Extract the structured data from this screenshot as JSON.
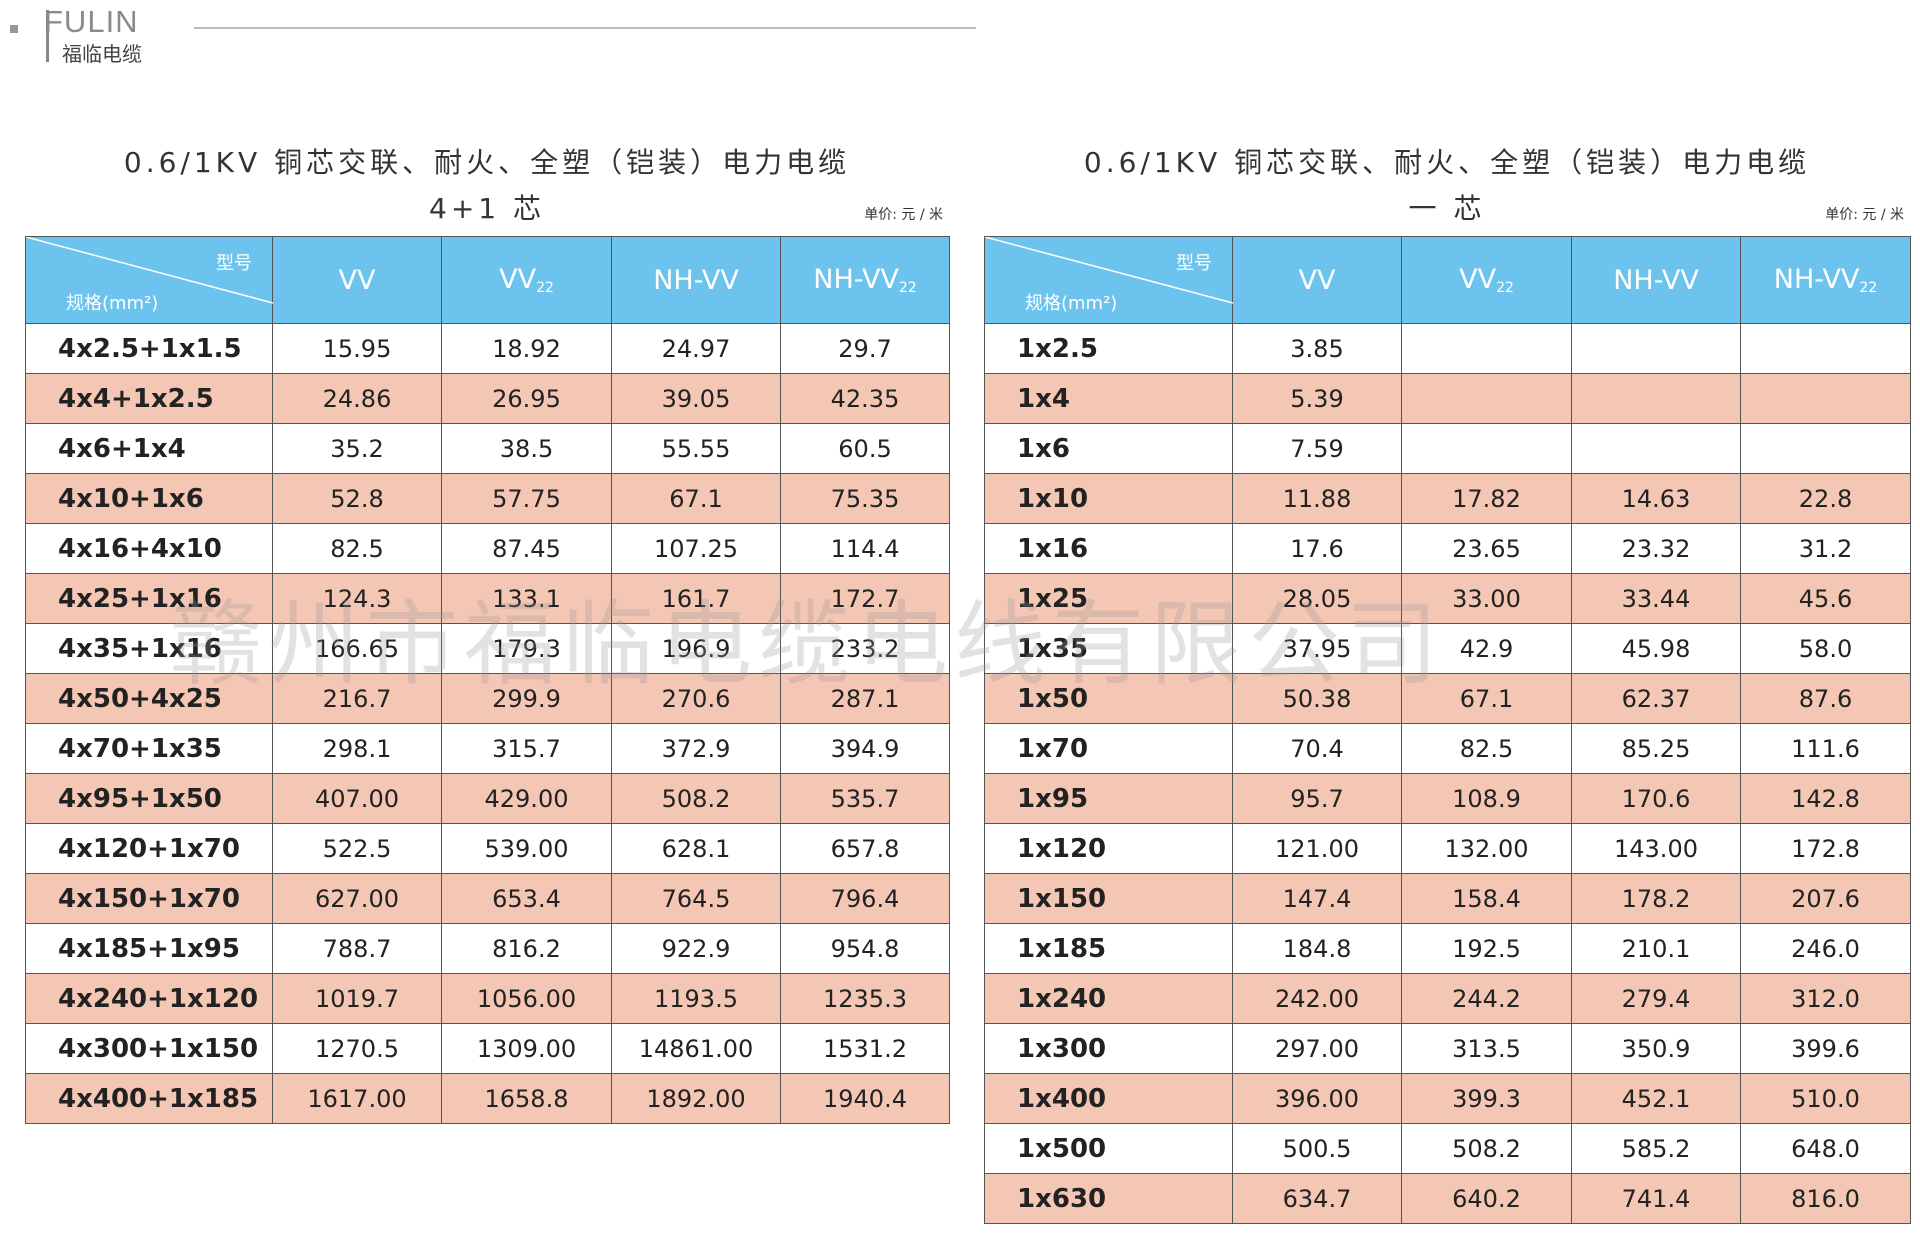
{
  "logo": {
    "brand": "FULIN",
    "name": "福临电缆"
  },
  "watermark": "赣州市福临电缆电线有限公司",
  "tables": [
    {
      "title": "0.6/1KV 铜芯交联、耐火、全塑（铠装）电力电缆",
      "subtitle": "4+1 芯",
      "unit": "单价: 元 / 米",
      "header": {
        "corner_top": "型号",
        "corner_bottom": "规格(mm²)",
        "columns": [
          {
            "name": "VV"
          },
          {
            "name": "VV",
            "sub": "22"
          },
          {
            "name": "NH-VV"
          },
          {
            "name": "NH-VV",
            "sub": "22"
          }
        ]
      },
      "rows": [
        [
          "4x2.5+1x1.5",
          "15.95",
          "18.92",
          "24.97",
          "29.7"
        ],
        [
          "4x4+1x2.5",
          "24.86",
          "26.95",
          "39.05",
          "42.35"
        ],
        [
          "4x6+1x4",
          "35.2",
          "38.5",
          "55.55",
          "60.5"
        ],
        [
          "4x10+1x6",
          "52.8",
          "57.75",
          "67.1",
          "75.35"
        ],
        [
          "4x16+4x10",
          "82.5",
          "87.45",
          "107.25",
          "114.4"
        ],
        [
          "4x25+1x16",
          "124.3",
          "133.1",
          "161.7",
          "172.7"
        ],
        [
          "4x35+1x16",
          "166.65",
          "179.3",
          "196.9",
          "233.2"
        ],
        [
          "4x50+4x25",
          "216.7",
          "299.9",
          "270.6",
          "287.1"
        ],
        [
          "4x70+1x35",
          "298.1",
          "315.7",
          "372.9",
          "394.9"
        ],
        [
          "4x95+1x50",
          "407.00",
          "429.00",
          "508.2",
          "535.7"
        ],
        [
          "4x120+1x70",
          "522.5",
          "539.00",
          "628.1",
          "657.8"
        ],
        [
          "4x150+1x70",
          "627.00",
          "653.4",
          "764.5",
          "796.4"
        ],
        [
          "4x185+1x95",
          "788.7",
          "816.2",
          "922.9",
          "954.8"
        ],
        [
          "4x240+1x120",
          "1019.7",
          "1056.00",
          "1193.5",
          "1235.3"
        ],
        [
          "4x300+1x150",
          "1270.5",
          "1309.00",
          "14861.00",
          "1531.2"
        ],
        [
          "4x400+1x185",
          "1617.00",
          "1658.8",
          "1892.00",
          "1940.4"
        ]
      ]
    },
    {
      "title": "0.6/1KV 铜芯交联、耐火、全塑（铠装）电力电缆",
      "subtitle": "一 芯",
      "unit": "单价: 元 / 米",
      "header": {
        "corner_top": "型号",
        "corner_bottom": "规格(mm²)",
        "columns": [
          {
            "name": "VV"
          },
          {
            "name": "VV",
            "sub": "22"
          },
          {
            "name": "NH-VV"
          },
          {
            "name": "NH-VV",
            "sub": "22"
          }
        ]
      },
      "rows": [
        [
          "1x2.5",
          "3.85",
          null,
          null,
          null
        ],
        [
          "1x4",
          "5.39",
          null,
          null,
          null
        ],
        [
          "1x6",
          "7.59",
          null,
          null,
          null
        ],
        [
          "1x10",
          "11.88",
          "17.82",
          "14.63",
          "22.8"
        ],
        [
          "1x16",
          "17.6",
          "23.65",
          "23.32",
          "31.2"
        ],
        [
          "1x25",
          "28.05",
          "33.00",
          "33.44",
          "45.6"
        ],
        [
          "1x35",
          "37.95",
          "42.9",
          "45.98",
          "58.0"
        ],
        [
          "1x50",
          "50.38",
          "67.1",
          "62.37",
          "87.6"
        ],
        [
          "1x70",
          "70.4",
          "82.5",
          "85.25",
          "111.6"
        ],
        [
          "1x95",
          "95.7",
          "108.9",
          "170.6",
          "142.8"
        ],
        [
          "1x120",
          "121.00",
          "132.00",
          "143.00",
          "172.8"
        ],
        [
          "1x150",
          "147.4",
          "158.4",
          "178.2",
          "207.6"
        ],
        [
          "1x185",
          "184.8",
          "192.5",
          "210.1",
          "246.0"
        ],
        [
          "1x240",
          "242.00",
          "244.2",
          "279.4",
          "312.0"
        ],
        [
          "1x300",
          "297.00",
          "313.5",
          "350.9",
          "399.6"
        ],
        [
          "1x400",
          "396.00",
          "399.3",
          "452.1",
          "510.0"
        ],
        [
          "1x500",
          "500.5",
          "508.2",
          "585.2",
          "648.0"
        ],
        [
          "1x630",
          "634.7",
          "640.2",
          "741.4",
          "816.0"
        ]
      ]
    }
  ]
}
